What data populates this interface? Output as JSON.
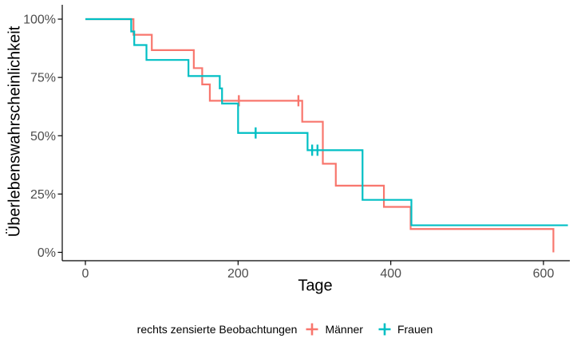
{
  "chart_data": {
    "type": "line",
    "subtype": "kaplan-meier-step",
    "title": "",
    "xlabel": "Tage",
    "ylabel": "Überlebenswahrscheinlichkeit",
    "legend_title": "rechts zensierte Beobachtungen",
    "legend_position": "bottom",
    "grid": false,
    "background": "#ffffff",
    "axis_color": "#000000",
    "tick_label_color": "#4d4d4d",
    "xlim": [
      0,
      632
    ],
    "ylim": [
      0,
      100
    ],
    "x_ticks": [
      {
        "label": "0",
        "value": 0
      },
      {
        "label": "200",
        "value": 200
      },
      {
        "label": "400",
        "value": 400
      },
      {
        "label": "600",
        "value": 600
      }
    ],
    "y_ticks": [
      {
        "label": "0%",
        "value": 0
      },
      {
        "label": "25%",
        "value": 25
      },
      {
        "label": "50%",
        "value": 50
      },
      {
        "label": "75%",
        "value": 75
      },
      {
        "label": "100%",
        "value": 100
      }
    ],
    "series": [
      {
        "name": "Männer",
        "color": "#F8766D",
        "steps": [
          [
            0,
            100
          ],
          [
            63,
            93.3
          ],
          [
            87,
            86.7
          ],
          [
            142,
            79
          ],
          [
            153,
            72
          ],
          [
            163,
            65
          ],
          [
            284,
            56
          ],
          [
            311,
            38
          ],
          [
            328,
            28.6
          ],
          [
            391,
            19.5
          ],
          [
            426,
            10
          ],
          [
            613,
            0
          ]
        ],
        "censored": [
          [
            201,
            65
          ],
          [
            279,
            65
          ]
        ],
        "end_day": 613
      },
      {
        "name": "Frauen",
        "color": "#00BFC4",
        "steps": [
          [
            0,
            100
          ],
          [
            60,
            94.7
          ],
          [
            64,
            88.9
          ],
          [
            80,
            82.5
          ],
          [
            135,
            75.6
          ],
          [
            176,
            70.3
          ],
          [
            179,
            63.8
          ],
          [
            200,
            51.2
          ],
          [
            291,
            43.8
          ],
          [
            363,
            22.5
          ],
          [
            427,
            11.6
          ]
        ],
        "censored": [
          [
            223,
            51.2
          ],
          [
            297,
            43.8
          ],
          [
            304,
            43.8
          ]
        ],
        "end_day": 632
      }
    ]
  }
}
